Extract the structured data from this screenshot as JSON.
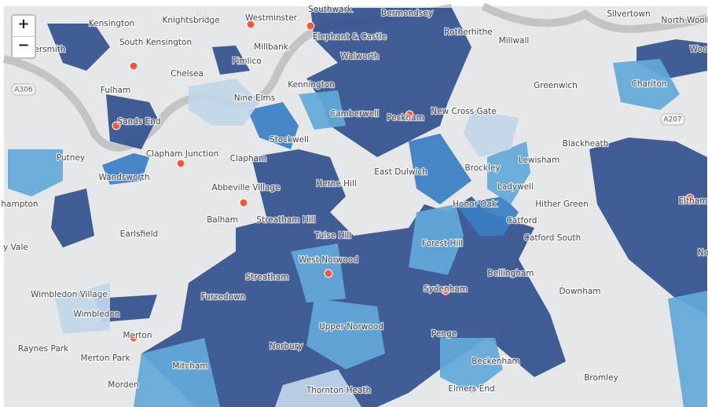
{
  "zoom_controls": {
    "zoom_in": "+",
    "zoom_out": "−"
  },
  "road_labels": [
    "A306",
    "A207"
  ],
  "place_labels": [
    "Kensington",
    "Knightsbridge",
    "Westminster",
    "Southwark",
    "Bermondsey",
    "Rotherhithe",
    "Silvertown",
    "North Wooli",
    "South Kensington",
    "Millbank",
    "Elephant & Castle",
    "Millwall",
    "ammersmith",
    "Walworth",
    "Pimlico",
    "Chelsea",
    "Kennington",
    "Greenwich",
    "Charlton",
    "Fulham",
    "Nine Elms",
    "Camberwell",
    "Peckham",
    "New Cross Gate",
    "Sands End",
    "Stockwell",
    "Blackheath",
    "Putney",
    "Clapham Junction",
    "Clapham",
    "Brockley",
    "Lewisham",
    "East Dulwich",
    "Wandsworth",
    "Abbeville Village",
    "Herne Hill",
    "Ladywell",
    "Eltham",
    "hampton",
    "Honor Oak",
    "Hither Green",
    "Balham",
    "Streatham Hill",
    "Catford",
    "Tulse Hill",
    "Earlsfield",
    "Catford South",
    "Forest Hill",
    "y Vale",
    "West Norwood",
    "Bellingham",
    "Streatham",
    "Sydenham",
    "Downham",
    "Wimbledon Village",
    "Furzedown",
    "Wimbledon",
    "Upper Norwood",
    "Penge",
    "Merton",
    "Raynes Park",
    "Norbury",
    "Merton Park",
    "Beckenham",
    "Mitcham",
    "Bromley",
    "Morden",
    "Thornton Heath",
    "Elmers End",
    "Woo",
    "No"
  ]
}
